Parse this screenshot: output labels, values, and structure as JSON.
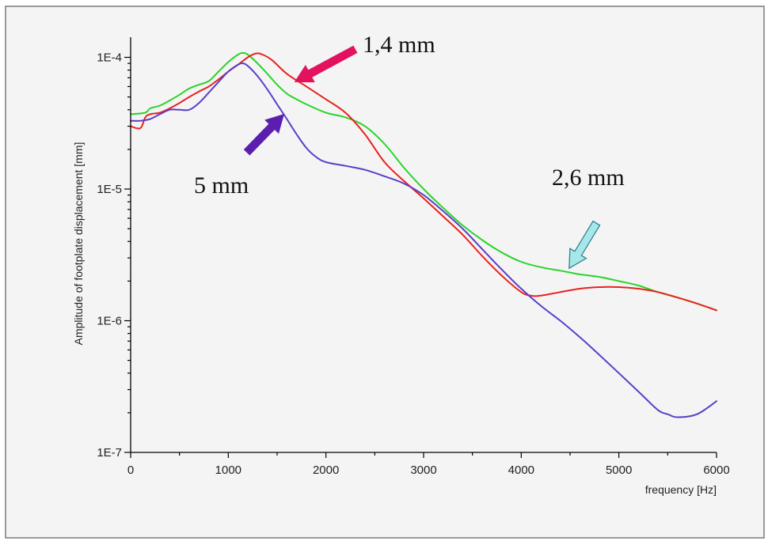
{
  "chart_data": {
    "type": "line",
    "title": "",
    "xlabel": "frequency [Hz]",
    "ylabel": "Amplitude of footplate displacement [mm]",
    "xlim": [
      0,
      6000
    ],
    "ylim": [
      1e-07,
      0.00015
    ],
    "yscale": "log",
    "grid": false,
    "x_ticks": [
      0,
      1000,
      2000,
      3000,
      4000,
      5000,
      6000
    ],
    "x_tick_labels": [
      "0",
      "1000",
      "2000",
      "3000",
      "4000",
      "5000",
      "6000"
    ],
    "y_ticks": [
      1e-07,
      1e-06,
      1e-05,
      0.0001
    ],
    "y_tick_labels": [
      "1E-7",
      "1E-6",
      "1E-5",
      "1E-4"
    ],
    "series": [
      {
        "color": "#2ad42a",
        "x": [
          0,
          150,
          200,
          300,
          400,
          500,
          600,
          700,
          800,
          900,
          1000,
          1100,
          1150,
          1200,
          1300,
          1400,
          1500,
          1600,
          1700,
          1800,
          2000,
          2200,
          2400,
          2600,
          2800,
          3000,
          3200,
          3400,
          3600,
          3800,
          4000,
          4200,
          4400,
          4600,
          4800,
          5000,
          5200,
          5400,
          5600,
          5800,
          6000
        ],
        "y": [
          3.7e-05,
          3.8e-05,
          4.1e-05,
          4.3e-05,
          4.7e-05,
          5.2e-05,
          5.8e-05,
          6.2e-05,
          6.6e-05,
          7.8e-05,
          9.2e-05,
          0.000105,
          0.000108,
          0.000105,
          9e-05,
          7.5e-05,
          6.2e-05,
          5.3e-05,
          4.8e-05,
          4.4e-05,
          3.8e-05,
          3.5e-05,
          3e-05,
          2.2e-05,
          1.45e-05,
          1e-05,
          7.2e-06,
          5.3e-06,
          4.1e-06,
          3.3e-06,
          2.8e-06,
          2.55e-06,
          2.4e-06,
          2.25e-06,
          2.15e-06,
          2e-06,
          1.85e-06,
          1.65e-06,
          1.5e-06,
          1.35e-06,
          1.2e-06
        ]
      },
      {
        "color": "#e8231e",
        "x": [
          0,
          100,
          150,
          200,
          300,
          400,
          500,
          600,
          700,
          800,
          900,
          1000,
          1100,
          1200,
          1280,
          1350,
          1450,
          1600,
          1800,
          2000,
          2200,
          2400,
          2600,
          2800,
          3000,
          3200,
          3400,
          3600,
          3800,
          4000,
          4100,
          4200,
          4400,
          4600,
          4800,
          5000,
          5200,
          5400,
          5600,
          5800,
          6000
        ],
        "y": [
          3e-05,
          2.9e-05,
          3.5e-05,
          3.7e-05,
          3.8e-05,
          4.1e-05,
          4.5e-05,
          5e-05,
          5.5e-05,
          6e-05,
          6.8e-05,
          7.8e-05,
          8.8e-05,
          0.0001,
          0.000107,
          0.000105,
          9.5e-05,
          7.5e-05,
          6e-05,
          4.8e-05,
          3.8e-05,
          2.6e-05,
          1.6e-05,
          1.15e-05,
          8.5e-06,
          6.2e-06,
          4.5e-06,
          3.1e-06,
          2.2e-06,
          1.65e-06,
          1.55e-06,
          1.55e-06,
          1.65e-06,
          1.75e-06,
          1.8e-06,
          1.8e-06,
          1.75e-06,
          1.65e-06,
          1.5e-06,
          1.35e-06,
          1.2e-06
        ]
      },
      {
        "color": "#5a3fc8",
        "x": [
          0,
          100,
          200,
          300,
          400,
          500,
          600,
          700,
          800,
          900,
          1000,
          1100,
          1150,
          1200,
          1300,
          1400,
          1500,
          1600,
          1700,
          1800,
          1900,
          2000,
          2200,
          2400,
          2600,
          2800,
          3000,
          3200,
          3400,
          3600,
          3800,
          4000,
          4200,
          4400,
          4600,
          4800,
          5000,
          5200,
          5400,
          5500,
          5600,
          5800,
          6000
        ],
        "y": [
          3.3e-05,
          3.3e-05,
          3.4e-05,
          3.7e-05,
          4e-05,
          4e-05,
          4e-05,
          4.5e-05,
          5.4e-05,
          6.5e-05,
          7.8e-05,
          8.8e-05,
          9e-05,
          8.6e-05,
          7.2e-05,
          5.7e-05,
          4.4e-05,
          3.4e-05,
          2.6e-05,
          2.05e-05,
          1.75e-05,
          1.6e-05,
          1.5e-05,
          1.4e-05,
          1.25e-05,
          1.1e-05,
          9e-06,
          6.8e-06,
          5e-06,
          3.5e-06,
          2.45e-06,
          1.75e-06,
          1.3e-06,
          1e-06,
          7.5e-07,
          5.5e-07,
          4e-07,
          2.9e-07,
          2.1e-07,
          1.95e-07,
          1.85e-07,
          1.95e-07,
          2.45e-07
        ]
      }
    ],
    "annotations": [
      {
        "text": "1,4 mm",
        "color": "#e2125e",
        "at": [
          1680,
          6.5e-05
        ],
        "from": [
          2300,
          0.000115
        ]
      },
      {
        "text": "5 mm",
        "color": "#5b1fb0",
        "at": [
          1570,
          3.7e-05
        ],
        "from": [
          1190,
          1.9e-05
        ]
      },
      {
        "text": "2,6 mm",
        "color": "#a6e8ea",
        "at": [
          4490,
          2.5e-06
        ],
        "from": [
          4770,
          5.5e-06
        ]
      }
    ]
  }
}
